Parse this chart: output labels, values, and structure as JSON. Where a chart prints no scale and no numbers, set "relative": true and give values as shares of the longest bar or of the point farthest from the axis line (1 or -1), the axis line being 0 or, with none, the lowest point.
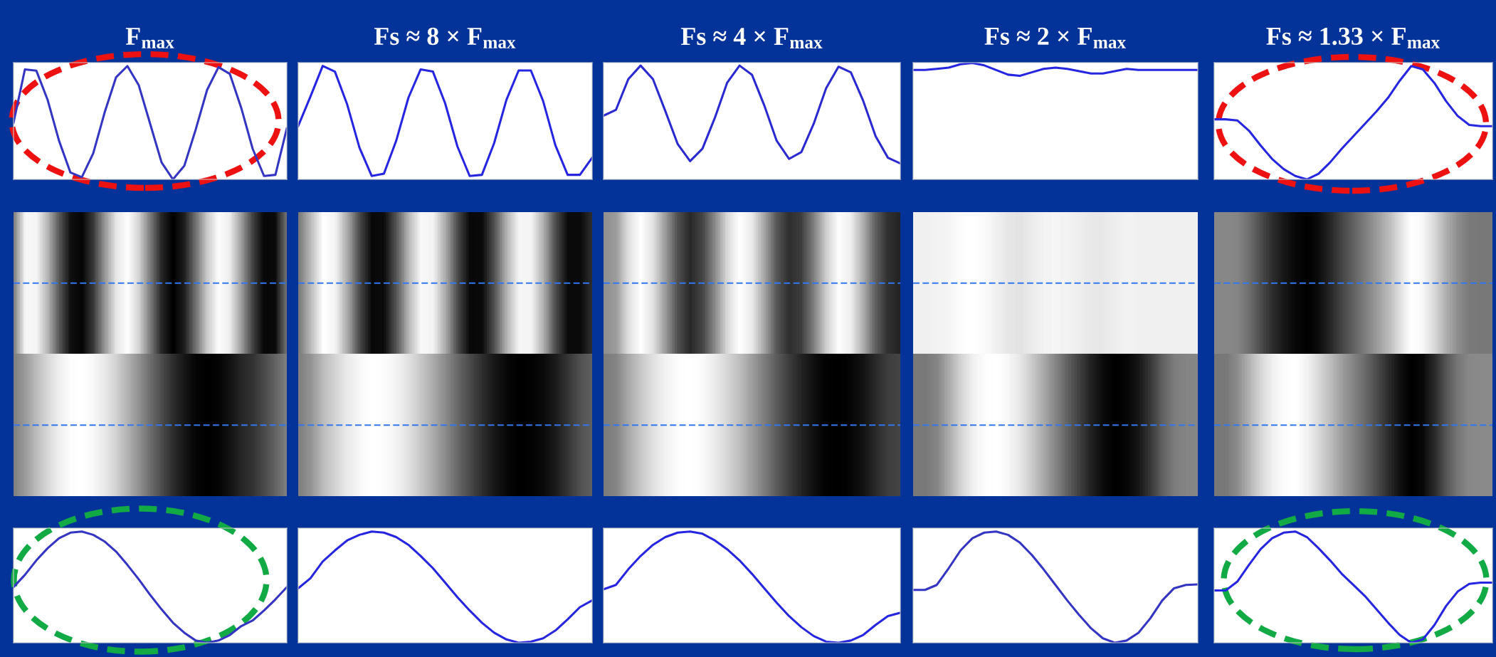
{
  "chart_data": [
    {
      "type": "line",
      "title": "F$_{max}$",
      "relative": true,
      "categories": [
        null,
        null,
        null,
        null,
        null,
        null,
        null,
        null,
        null,
        null,
        null,
        null,
        null,
        null,
        null,
        null,
        null,
        null,
        null,
        null,
        null,
        null,
        null,
        null,
        null
      ],
      "series": [
        {
          "color": "#3535c4",
          "values": [
            0.5,
            0.97,
            0.96,
            0.7,
            0.34,
            0.06,
            0.02,
            0.23,
            0.59,
            0.9,
            1.0,
            0.83,
            0.49,
            0.15,
            0.0,
            0.12,
            0.44,
            0.79,
            0.99,
            0.93,
            0.63,
            0.27,
            0.03,
            0.04,
            0.45
          ]
        }
      ]
    },
    {
      "type": "line",
      "title": "Fs ≈ 8 × F$_{max}$",
      "relative": true,
      "categories": [
        null,
        null,
        null,
        null,
        null,
        null,
        null,
        null,
        null,
        null,
        null,
        null,
        null,
        null,
        null,
        null,
        null,
        null,
        null,
        null,
        null,
        null,
        null,
        null,
        null
      ],
      "series": [
        {
          "color": "#2626e0",
          "values": [
            0.47,
            0.73,
            1.0,
            0.95,
            0.66,
            0.28,
            0.03,
            0.05,
            0.34,
            0.72,
            0.97,
            0.95,
            0.67,
            0.29,
            0.03,
            0.04,
            0.32,
            0.7,
            0.96,
            0.96,
            0.69,
            0.3,
            0.04,
            0.04,
            0.19
          ]
        }
      ]
    },
    {
      "type": "line",
      "title": "Fs ≈ 4 × F$_{max}$",
      "relative": true,
      "categories": [
        null,
        null,
        null,
        null,
        null,
        null,
        null,
        null,
        null,
        null,
        null,
        null,
        null,
        null,
        null,
        null,
        null,
        null,
        null,
        null,
        null,
        null,
        null,
        null,
        null
      ],
      "series": [
        {
          "color": "#2a2ad0",
          "values": [
            0.56,
            0.61,
            0.88,
            1.0,
            0.88,
            0.6,
            0.31,
            0.16,
            0.27,
            0.54,
            0.85,
            1.0,
            0.92,
            0.65,
            0.34,
            0.18,
            0.24,
            0.49,
            0.8,
            0.99,
            0.94,
            0.69,
            0.38,
            0.19,
            0.14
          ]
        }
      ]
    },
    {
      "type": "line",
      "title": "Fs ≈ 2 × F$_{max}$",
      "relative": true,
      "categories": [
        null,
        null,
        null,
        null,
        null,
        null,
        null,
        null,
        null,
        null,
        null,
        null,
        null,
        null,
        null,
        null,
        null,
        null,
        null,
        null,
        null,
        null,
        null,
        null,
        null
      ],
      "series": [
        {
          "color": "#2626e0",
          "values": [
            0.94,
            0.94,
            0.95,
            0.96,
            0.99,
            1.0,
            0.98,
            0.94,
            0.9,
            0.89,
            0.92,
            0.95,
            0.96,
            0.95,
            0.93,
            0.91,
            0.91,
            0.93,
            0.95,
            0.94,
            0.94,
            0.94,
            0.94,
            0.94,
            0.94
          ]
        }
      ]
    },
    {
      "type": "line",
      "title": "Fs ≈ 1.33 × F$_{max}$",
      "relative": true,
      "categories": [
        null,
        null,
        null,
        null,
        null,
        null,
        null,
        null,
        null,
        null,
        null,
        null,
        null,
        null,
        null,
        null,
        null,
        null,
        null,
        null,
        null,
        null,
        null,
        null,
        null
      ],
      "series": [
        {
          "color": "#2626e0",
          "values": [
            0.53,
            0.53,
            0.52,
            0.43,
            0.3,
            0.18,
            0.09,
            0.03,
            0.0,
            0.05,
            0.15,
            0.27,
            0.38,
            0.49,
            0.6,
            0.72,
            0.87,
            1.0,
            0.97,
            0.85,
            0.69,
            0.56,
            0.48,
            0.47,
            0.47
          ]
        }
      ]
    },
    {
      "type": "line",
      "relative": true,
      "categories": [
        null,
        null,
        null,
        null,
        null,
        null,
        null,
        null,
        null,
        null,
        null,
        null,
        null,
        null,
        null,
        null,
        null,
        null,
        null,
        null,
        null,
        null,
        null,
        null,
        null
      ],
      "series": [
        {
          "color": "#3535c4",
          "values": [
            0.5,
            0.61,
            0.74,
            0.85,
            0.94,
            0.99,
            1.0,
            0.97,
            0.91,
            0.82,
            0.7,
            0.57,
            0.43,
            0.3,
            0.18,
            0.09,
            0.02,
            0.0,
            0.02,
            0.07,
            0.15,
            0.2,
            0.29,
            0.39,
            0.5
          ]
        }
      ]
    },
    {
      "type": "line",
      "relative": true,
      "categories": [
        null,
        null,
        null,
        null,
        null,
        null,
        null,
        null,
        null,
        null,
        null,
        null,
        null,
        null,
        null,
        null,
        null,
        null,
        null,
        null,
        null,
        null,
        null,
        null,
        null
      ],
      "series": [
        {
          "color": "#2626e0",
          "values": [
            0.49,
            0.58,
            0.73,
            0.83,
            0.92,
            0.97,
            1.0,
            0.99,
            0.95,
            0.88,
            0.78,
            0.67,
            0.54,
            0.41,
            0.29,
            0.18,
            0.09,
            0.03,
            0.0,
            0.01,
            0.04,
            0.11,
            0.21,
            0.32,
            0.38
          ]
        }
      ]
    },
    {
      "type": "line",
      "relative": true,
      "categories": [
        null,
        null,
        null,
        null,
        null,
        null,
        null,
        null,
        null,
        null,
        null,
        null,
        null,
        null,
        null,
        null,
        null,
        null,
        null,
        null,
        null,
        null,
        null,
        null,
        null
      ],
      "series": [
        {
          "color": "#2626e0",
          "values": [
            0.48,
            0.52,
            0.66,
            0.78,
            0.88,
            0.95,
            0.99,
            1.0,
            0.98,
            0.92,
            0.84,
            0.74,
            0.62,
            0.49,
            0.36,
            0.24,
            0.14,
            0.06,
            0.01,
            0.0,
            0.02,
            0.07,
            0.16,
            0.24,
            0.27
          ]
        }
      ]
    },
    {
      "type": "line",
      "relative": true,
      "categories": [
        null,
        null,
        null,
        null,
        null,
        null,
        null,
        null,
        null,
        null,
        null,
        null,
        null,
        null,
        null,
        null,
        null,
        null,
        null,
        null,
        null,
        null,
        null,
        null,
        null
      ],
      "series": [
        {
          "color": "#3535c4",
          "values": [
            0.475,
            0.475,
            0.52,
            0.67,
            0.83,
            0.94,
            0.99,
            1.0,
            0.97,
            0.9,
            0.79,
            0.66,
            0.52,
            0.38,
            0.25,
            0.13,
            0.04,
            0.0,
            0.02,
            0.09,
            0.22,
            0.38,
            0.49,
            0.52,
            0.525
          ]
        }
      ]
    },
    {
      "type": "line",
      "relative": true,
      "categories": [
        null,
        null,
        null,
        null,
        null,
        null,
        null,
        null,
        null,
        null,
        null,
        null,
        null,
        null,
        null,
        null,
        null,
        null,
        null,
        null,
        null,
        null,
        null,
        null,
        null
      ],
      "series": [
        {
          "color": "#2626e0",
          "values": [
            0.47,
            0.47,
            0.55,
            0.7,
            0.84,
            0.94,
            0.99,
            1.0,
            0.95,
            0.85,
            0.74,
            0.62,
            0.52,
            0.42,
            0.3,
            0.18,
            0.07,
            0.0,
            0.03,
            0.16,
            0.33,
            0.46,
            0.53,
            0.54,
            0.54
          ]
        }
      ]
    }
  ]
}
